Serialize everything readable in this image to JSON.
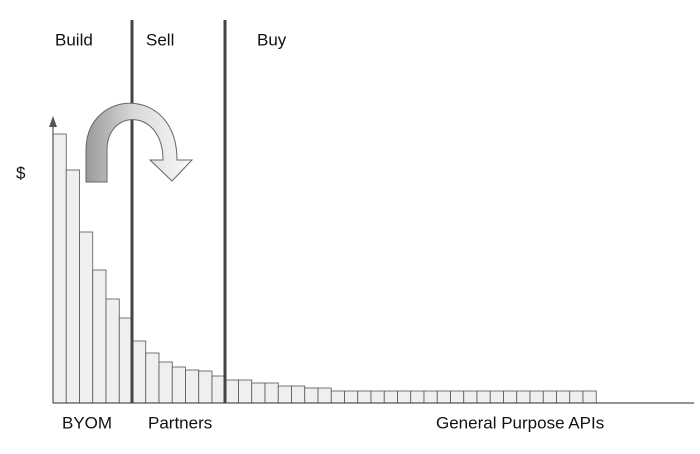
{
  "chart_data": {
    "type": "bar",
    "ylabel": "$",
    "annotations": [
      "Build",
      "Sell",
      "Buy"
    ],
    "region_labels": [
      "BYOM",
      "Partners",
      "General Purpose APIs"
    ],
    "categories": [
      null,
      null,
      null,
      null,
      null,
      null,
      null,
      null,
      null,
      null,
      null,
      null,
      null,
      null,
      null,
      null,
      null,
      null,
      null,
      null,
      null,
      null,
      null,
      null,
      null,
      null,
      null,
      null,
      null,
      null,
      null,
      null,
      null,
      null,
      null,
      null,
      null,
      null,
      null,
      null,
      null
    ],
    "values": [
      269,
      233,
      171,
      133,
      104,
      85,
      62,
      50,
      41,
      36,
      33,
      32,
      27,
      23,
      23,
      20,
      20,
      17,
      17,
      15,
      15,
      12,
      12,
      12,
      12,
      12,
      12,
      12,
      12,
      12,
      12,
      12,
      12,
      12,
      12,
      12,
      12,
      12,
      12,
      12,
      12
    ],
    "color": "#efefef",
    "ylim": [
      0,
      285
    ]
  }
}
